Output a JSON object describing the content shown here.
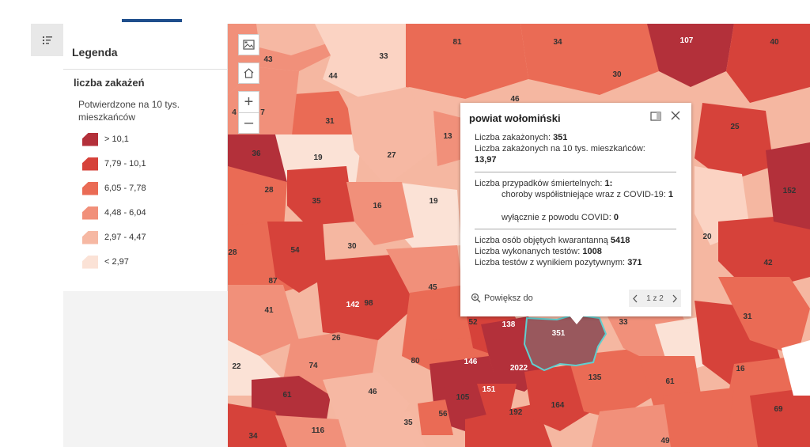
{
  "legend": {
    "title": "Legenda",
    "layer": "liczba zakażeń",
    "field": "Potwierdzone na 10 tys. mieszkańców",
    "classes": [
      {
        "label": "> 10,1",
        "color": "#b3303a"
      },
      {
        "label": "7,79 - 10,1",
        "color": "#d6423a"
      },
      {
        "label": "6,05 - 7,78",
        "color": "#ea6b55"
      },
      {
        "label": "4,48 - 6,04",
        "color": "#f1907a"
      },
      {
        "label": "2,97 - 4,47",
        "color": "#f6b8a3"
      },
      {
        "label": "< 2,97",
        "color": "#fbe2d6"
      }
    ]
  },
  "icons": {
    "legend_toggle": "list-icon",
    "basemap": "basemap-gallery-icon",
    "home": "home-icon",
    "zoom_in": "plus-icon",
    "zoom_out": "minus-icon",
    "dock": "dock-icon",
    "close": "close-icon",
    "zoom_to": "zoom-to-icon"
  },
  "map_controls": {
    "zoom_in": "+",
    "zoom_out": "–"
  },
  "map_labels": {
    "n81": "81",
    "n34": "34",
    "n107": "107",
    "n40": "40",
    "n43": "43",
    "n33": "33",
    "n44": "44",
    "n30a": "30",
    "n46a": "46",
    "n7": "7",
    "n4": "4",
    "n31a": "31",
    "n13": "13",
    "n25": "25",
    "n36": "36",
    "n19a": "19",
    "n27": "27",
    "n152": "152",
    "n28a": "28",
    "n35a": "35",
    "n16a": "16",
    "n19b": "19",
    "n20": "20",
    "n28b": "28",
    "n54": "54",
    "n30b": "30",
    "n42": "42",
    "n87": "87",
    "n45": "45",
    "n41": "41",
    "n142": "142",
    "n98": "98",
    "n31b": "31",
    "n52": "52",
    "n138": "138",
    "n351": "351",
    "n33b": "33",
    "n26": "26",
    "n22": "22",
    "n74": "74",
    "n80": "80",
    "n146": "146",
    "n2022": "2022",
    "n135": "135",
    "n16b": "16",
    "n61a": "61",
    "n46b": "46",
    "n105": "105",
    "n151": "151",
    "n61b": "61",
    "n56": "56",
    "n192": "192",
    "n164": "164",
    "n69": "69",
    "n34b": "34",
    "n116": "116",
    "n35b": "35",
    "n49": "49"
  },
  "popup": {
    "title": "powiat wołomiński",
    "cases_label": "Liczba zakażonych:",
    "cases_value": "351",
    "cases10k_label": "Liczba zakażonych na 10 tys. mieszkańców:",
    "cases10k_value": "13,97",
    "deaths_label": "Liczba przypadków śmiertelnych:",
    "deaths_value": "1:",
    "comorb_label": "choroby współistniejące wraz z COVID-19:",
    "comorb_value": "1",
    "covid_only_label": "wyłącznie z powodu COVID:",
    "covid_only_value": "0",
    "quarantine_label": "Liczba osób objętych kwarantanną",
    "quarantine_value": "5418",
    "tests_label": "Liczba wykonanych testów:",
    "tests_value": "1008",
    "positive_label": "Liczba testów z wynikiem pozytywnym:",
    "positive_value": "371",
    "zoom_label": "Powiększ do",
    "pager": "1 z 2"
  }
}
